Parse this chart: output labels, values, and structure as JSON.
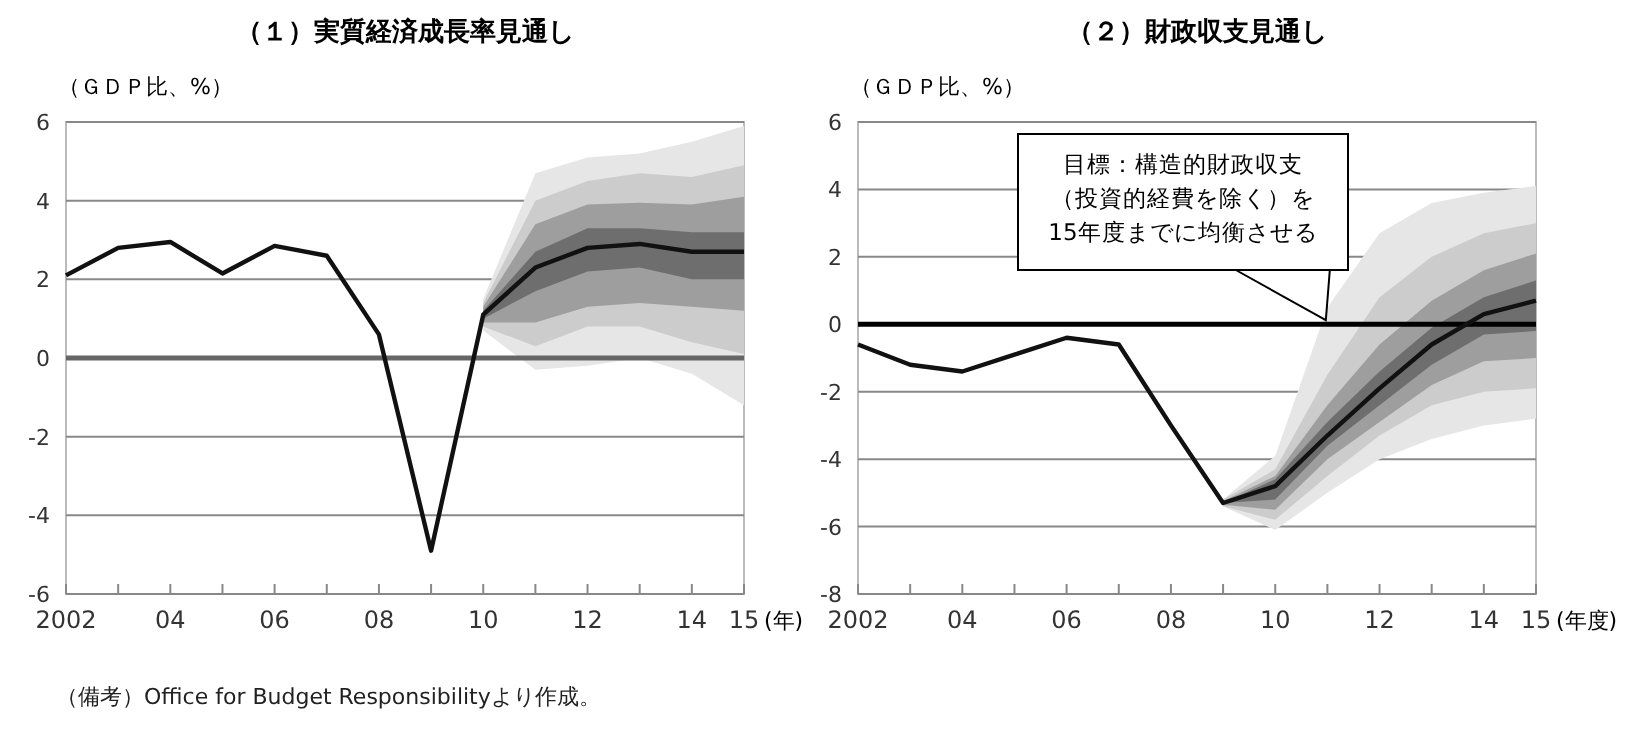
{
  "chart_data": [
    {
      "type": "line",
      "title": "（１）実質経済成長率見通し",
      "ylabel": "（ＧＤＰ比、%）",
      "xlabel": "(年)",
      "xlim": [
        2002,
        2015
      ],
      "ylim": [
        -6,
        6
      ],
      "xticks": [
        {
          "value": 2002,
          "label": "2002"
        },
        {
          "value": 2003,
          "label": null
        },
        {
          "value": 2004,
          "label": "04"
        },
        {
          "value": 2005,
          "label": null
        },
        {
          "value": 2006,
          "label": "06"
        },
        {
          "value": 2007,
          "label": null
        },
        {
          "value": 2008,
          "label": "08"
        },
        {
          "value": 2009,
          "label": null
        },
        {
          "value": 2010,
          "label": "10"
        },
        {
          "value": 2011,
          "label": null
        },
        {
          "value": 2012,
          "label": "12"
        },
        {
          "value": 2013,
          "label": null
        },
        {
          "value": 2014,
          "label": "14"
        },
        {
          "value": 2015,
          "label": "15"
        }
      ],
      "yticks": [
        -6,
        -4,
        -2,
        0,
        2,
        4,
        6
      ],
      "grid": "y",
      "ref_lines": [
        {
          "axis": "y",
          "value": 0,
          "color": "#666666"
        }
      ],
      "annotations": [
        "（備考）Office for Budget Responsibilityより作成。"
      ],
      "series": [
        {
          "color": "#e6e6e6",
          "x": [
            2010,
            2011,
            2012,
            2013,
            2014,
            2015
          ],
          "values": [
            null,
            null,
            null,
            null,
            null,
            null
          ],
          "lower": [
            0.7,
            -0.3,
            -0.2,
            0,
            -0.4,
            -1.2
          ],
          "upper": [
            1.5,
            4.7,
            5.1,
            5.2,
            5.5,
            5.9
          ]
        },
        {
          "color": "#cccccc",
          "x": [
            2010,
            2011,
            2012,
            2013,
            2014,
            2015
          ],
          "values": [
            null,
            null,
            null,
            null,
            null,
            null
          ],
          "lower": [
            0.8,
            0.3,
            0.8,
            0.8,
            0.4,
            0.1
          ],
          "upper": [
            1.4,
            4.0,
            4.5,
            4.7,
            4.6,
            4.9
          ]
        },
        {
          "color": "#9e9e9e",
          "x": [
            2010,
            2011,
            2012,
            2013,
            2014,
            2015
          ],
          "values": [
            null,
            null,
            null,
            null,
            null,
            null
          ],
          "lower": [
            0.9,
            0.9,
            1.3,
            1.4,
            1.3,
            1.2
          ],
          "upper": [
            1.3,
            3.4,
            3.9,
            3.95,
            3.9,
            4.1
          ]
        },
        {
          "color": "#6e6e6e",
          "x": [
            2010,
            2011,
            2012,
            2013,
            2014,
            2015
          ],
          "values": [
            null,
            null,
            null,
            null,
            null,
            null
          ],
          "lower": [
            1.0,
            1.7,
            2.2,
            2.3,
            2.0,
            2.0
          ],
          "upper": [
            1.2,
            2.7,
            3.3,
            3.3,
            3.2,
            3.2
          ]
        },
        {
          "color": "#111111",
          "x": [
            2002,
            2003,
            2004,
            2005,
            2006,
            2007,
            2008,
            2009,
            2010,
            2011,
            2012,
            2013,
            2014,
            2015
          ],
          "values": [
            2.1,
            2.8,
            2.95,
            2.15,
            2.85,
            2.6,
            0.6,
            -4.9,
            1.1,
            2.3,
            2.8,
            2.9,
            2.7,
            2.7
          ]
        }
      ]
    },
    {
      "type": "line",
      "title": "（２）財政収支見通し",
      "ylabel": "（ＧＤＰ比、%）",
      "xlabel": "(年度)",
      "xlim": [
        2002,
        2015
      ],
      "ylim": [
        -8,
        6
      ],
      "xticks": [
        {
          "value": 2002,
          "label": "2002"
        },
        {
          "value": 2003,
          "label": null
        },
        {
          "value": 2004,
          "label": "04"
        },
        {
          "value": 2005,
          "label": null
        },
        {
          "value": 2006,
          "label": "06"
        },
        {
          "value": 2007,
          "label": null
        },
        {
          "value": 2008,
          "label": "08"
        },
        {
          "value": 2009,
          "label": null
        },
        {
          "value": 2010,
          "label": "10"
        },
        {
          "value": 2011,
          "label": null
        },
        {
          "value": 2012,
          "label": "12"
        },
        {
          "value": 2013,
          "label": null
        },
        {
          "value": 2014,
          "label": "14"
        },
        {
          "value": 2015,
          "label": "15"
        }
      ],
      "yticks": [
        -8,
        -6,
        -4,
        -2,
        0,
        2,
        4,
        6
      ],
      "grid": "y",
      "ref_lines": [
        {
          "axis": "y",
          "value": 0,
          "color": "#000000"
        }
      ],
      "annotations": [
        "目標：構造的財政収支（投資的経費を除く）を15年度までに均衡させる"
      ],
      "series": [
        {
          "color": "#e6e6e6",
          "x": [
            2009,
            2010,
            2011,
            2012,
            2013,
            2014,
            2015
          ],
          "values": [
            null,
            null,
            null,
            null,
            null,
            null,
            null
          ],
          "lower": [
            -5.4,
            -6.1,
            -5.0,
            -4.0,
            -3.4,
            -3.0,
            -2.8
          ],
          "upper": [
            -5.2,
            -3.9,
            0.5,
            2.7,
            3.6,
            3.9,
            4.1
          ]
        },
        {
          "color": "#cccccc",
          "x": [
            2009,
            2010,
            2011,
            2012,
            2013,
            2014,
            2015
          ],
          "values": [
            null,
            null,
            null,
            null,
            null,
            null,
            null
          ],
          "lower": [
            -5.4,
            -5.8,
            -4.5,
            -3.3,
            -2.4,
            -2.0,
            -1.9
          ],
          "upper": [
            -5.2,
            -4.3,
            -1.5,
            0.8,
            2.0,
            2.7,
            3.0
          ]
        },
        {
          "color": "#9e9e9e",
          "x": [
            2009,
            2010,
            2011,
            2012,
            2013,
            2014,
            2015
          ],
          "values": [
            null,
            null,
            null,
            null,
            null,
            null,
            null
          ],
          "lower": [
            -5.35,
            -5.5,
            -4.0,
            -2.9,
            -1.8,
            -1.1,
            -1.0
          ],
          "upper": [
            -5.25,
            -4.5,
            -2.4,
            -0.6,
            0.7,
            1.6,
            2.1
          ]
        },
        {
          "color": "#6e6e6e",
          "x": [
            2009,
            2010,
            2011,
            2012,
            2013,
            2014,
            2015
          ],
          "values": [
            null,
            null,
            null,
            null,
            null,
            null,
            null
          ],
          "lower": [
            -5.3,
            -5.2,
            -3.6,
            -2.4,
            -1.2,
            -0.3,
            -0.2
          ],
          "upper": [
            -5.3,
            -4.6,
            -2.9,
            -1.4,
            -0.1,
            0.8,
            1.3
          ]
        },
        {
          "color": "#111111",
          "x": [
            2002,
            2003,
            2004,
            2005,
            2006,
            2007,
            2008,
            2009,
            2010,
            2011,
            2012,
            2013,
            2014,
            2015
          ],
          "values": [
            -0.6,
            -1.2,
            -1.4,
            -0.9,
            -0.4,
            -0.6,
            -3.0,
            -5.3,
            -4.8,
            -3.3,
            -1.9,
            -0.6,
            0.3,
            0.7
          ]
        }
      ]
    }
  ]
}
